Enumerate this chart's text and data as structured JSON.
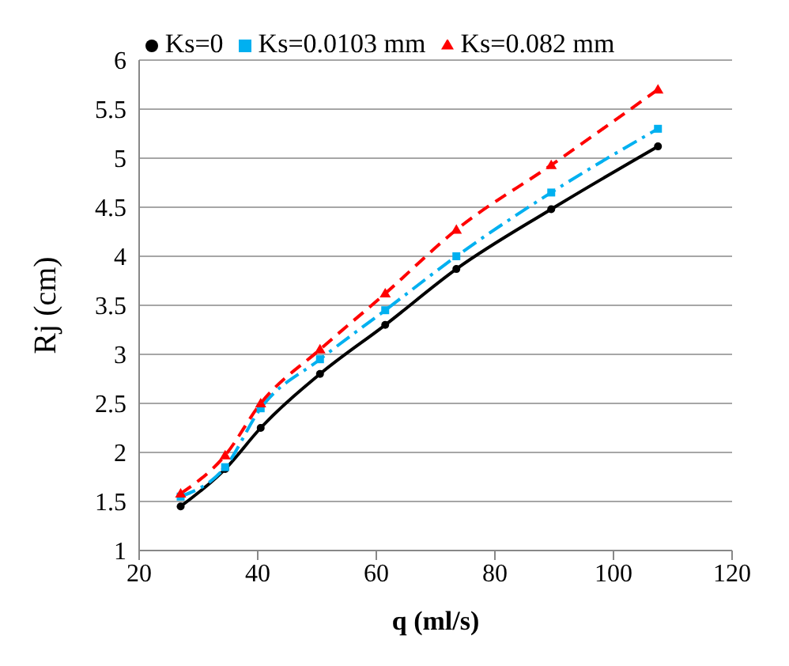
{
  "chart_data": {
    "type": "line",
    "xlabel": "q (ml/s)",
    "ylabel": "Rj (cm)",
    "x": [
      27,
      34.5,
      40.5,
      50.5,
      61.5,
      73.5,
      89.5,
      107.5
    ],
    "series": [
      {
        "name": "Ks=0",
        "color": "#000000",
        "marker": "circle",
        "line_style": "solid",
        "values": [
          1.45,
          1.83,
          2.25,
          2.8,
          3.3,
          3.87,
          4.48,
          5.12
        ]
      },
      {
        "name": "Ks=0.0103 mm",
        "color": "#00b0f0",
        "marker": "square",
        "line_style": "dashdot",
        "values": [
          1.55,
          1.85,
          2.45,
          2.95,
          3.45,
          4.0,
          4.65,
          5.3
        ]
      },
      {
        "name": "Ks=0.082 mm",
        "color": "#ff0000",
        "marker": "triangle",
        "line_style": "dashed",
        "values": [
          1.58,
          1.97,
          2.5,
          3.05,
          3.62,
          4.27,
          4.93,
          5.7
        ]
      }
    ],
    "xlim": [
      20,
      120
    ],
    "xticks": [
      20,
      40,
      60,
      80,
      100,
      120
    ],
    "ylim": [
      1,
      6
    ],
    "yticks": [
      1,
      1.5,
      2,
      2.5,
      3,
      3.5,
      4,
      4.5,
      5,
      5.5,
      6
    ],
    "grid": "y",
    "legend": "top"
  }
}
